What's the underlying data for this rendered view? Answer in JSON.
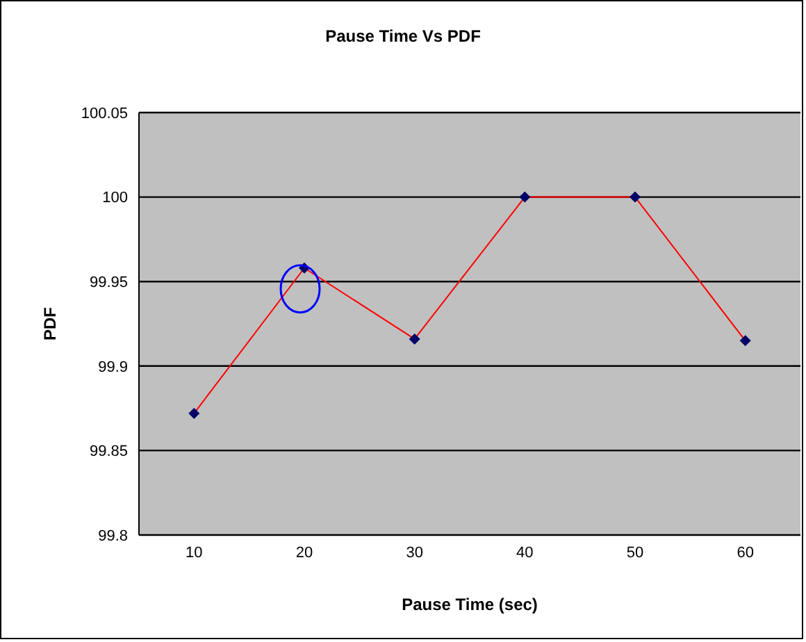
{
  "chart_data": {
    "type": "line",
    "title": "Pause Time Vs PDF",
    "xlabel": "Pause Time (sec)",
    "ylabel": "PDF",
    "categories": [
      "10",
      "20",
      "30",
      "40",
      "50",
      "60"
    ],
    "series": [
      {
        "color": "#ff0000",
        "values": [
          99.872,
          99.958,
          99.916,
          100,
          100,
          99.915
        ]
      }
    ],
    "ylim": [
      99.8,
      100.05
    ],
    "yticks": [
      99.8,
      99.85,
      99.9,
      99.95,
      100,
      100.05
    ],
    "grid": "y",
    "marker": "diamond",
    "line_style": "solid",
    "legend": false
  }
}
